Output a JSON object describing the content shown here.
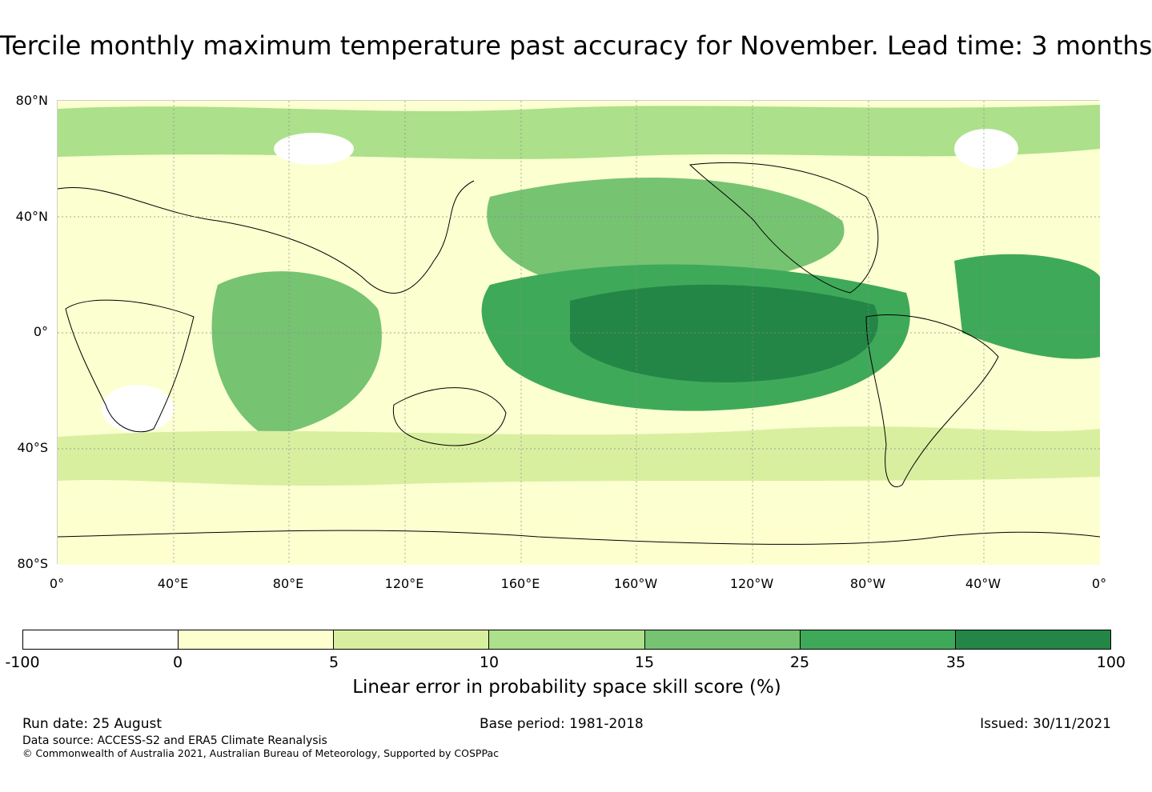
{
  "title": "Tercile monthly maximum temperature past accuracy for November. Lead time: 3 months",
  "map": {
    "y_ticks": [
      "80°N",
      "40°N",
      "0°",
      "40°S",
      "80°S"
    ],
    "x_ticks": [
      "0°",
      "40°E",
      "80°E",
      "120°E",
      "160°E",
      "160°W",
      "120°W",
      "80°W",
      "40°W",
      "0°"
    ],
    "colors": {
      "background": "#fcffd0",
      "land_coast": "#000000",
      "gridline": "#8a8a8a"
    }
  },
  "colorbar": {
    "colors": [
      "#ffffff",
      "#feffcf",
      "#d9efa0",
      "#ace08b",
      "#76c372",
      "#3fa95a",
      "#238646"
    ],
    "labels": [
      "-100",
      "0",
      "5",
      "10",
      "15",
      "25",
      "35",
      "100"
    ],
    "title": "Linear error in probability space skill score (%)"
  },
  "footer": {
    "run_date": "Run date: 25 August",
    "base_period": "Base period: 1981-2018",
    "issued": "Issued: 30/11/2021",
    "data_source": "Data source: ACCESS-S2 and ERA5 Climate Reanalysis",
    "copyright": "© Commonwealth of Australia 2021, Australian Bureau of Meteorology, Supported by COSPPac"
  }
}
